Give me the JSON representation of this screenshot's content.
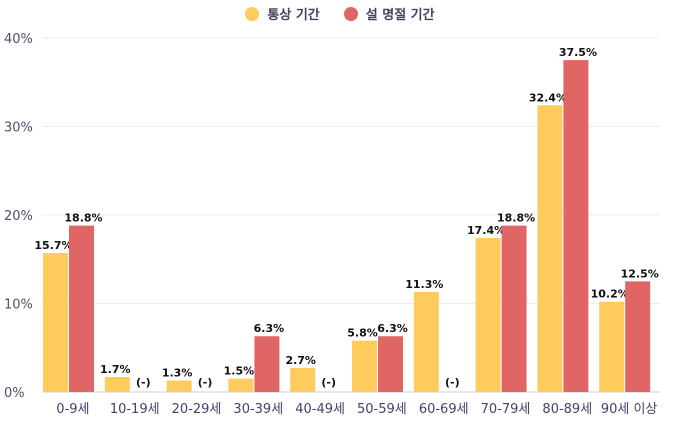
{
  "chart_data": {
    "type": "bar",
    "categories": [
      "0-9세",
      "10-19세",
      "20-29세",
      "30-39세",
      "40-49세",
      "50-59세",
      "60-69세",
      "70-79세",
      "80-89세",
      "90세 이상"
    ],
    "series": [
      {
        "name": "통상 기간",
        "color": "#FFCB5C",
        "values": [
          15.7,
          1.7,
          1.3,
          1.5,
          2.7,
          5.8,
          11.3,
          17.4,
          32.4,
          10.2
        ],
        "labels": [
          "15.7%",
          "1.7%",
          "1.3%",
          "1.5%",
          "2.7%",
          "5.8%",
          "11.3%",
          "17.4%",
          "32.4%",
          "10.2%"
        ]
      },
      {
        "name": "설 명절 기간",
        "color": "#E06666",
        "values": [
          18.8,
          null,
          null,
          6.3,
          null,
          6.3,
          null,
          18.8,
          37.5,
          12.5
        ],
        "labels": [
          "18.8%",
          "(-)",
          "(-)",
          "6.3%",
          "(-)",
          "6.3%",
          "(-)",
          "18.8%",
          "37.5%",
          "12.5%"
        ]
      }
    ],
    "yticks": [
      "0%",
      "10%",
      "20%",
      "30%",
      "40%"
    ],
    "ylim": [
      0,
      40
    ],
    "grid": true,
    "legend": "top-center",
    "xlabel": "",
    "ylabel": "",
    "title": ""
  }
}
